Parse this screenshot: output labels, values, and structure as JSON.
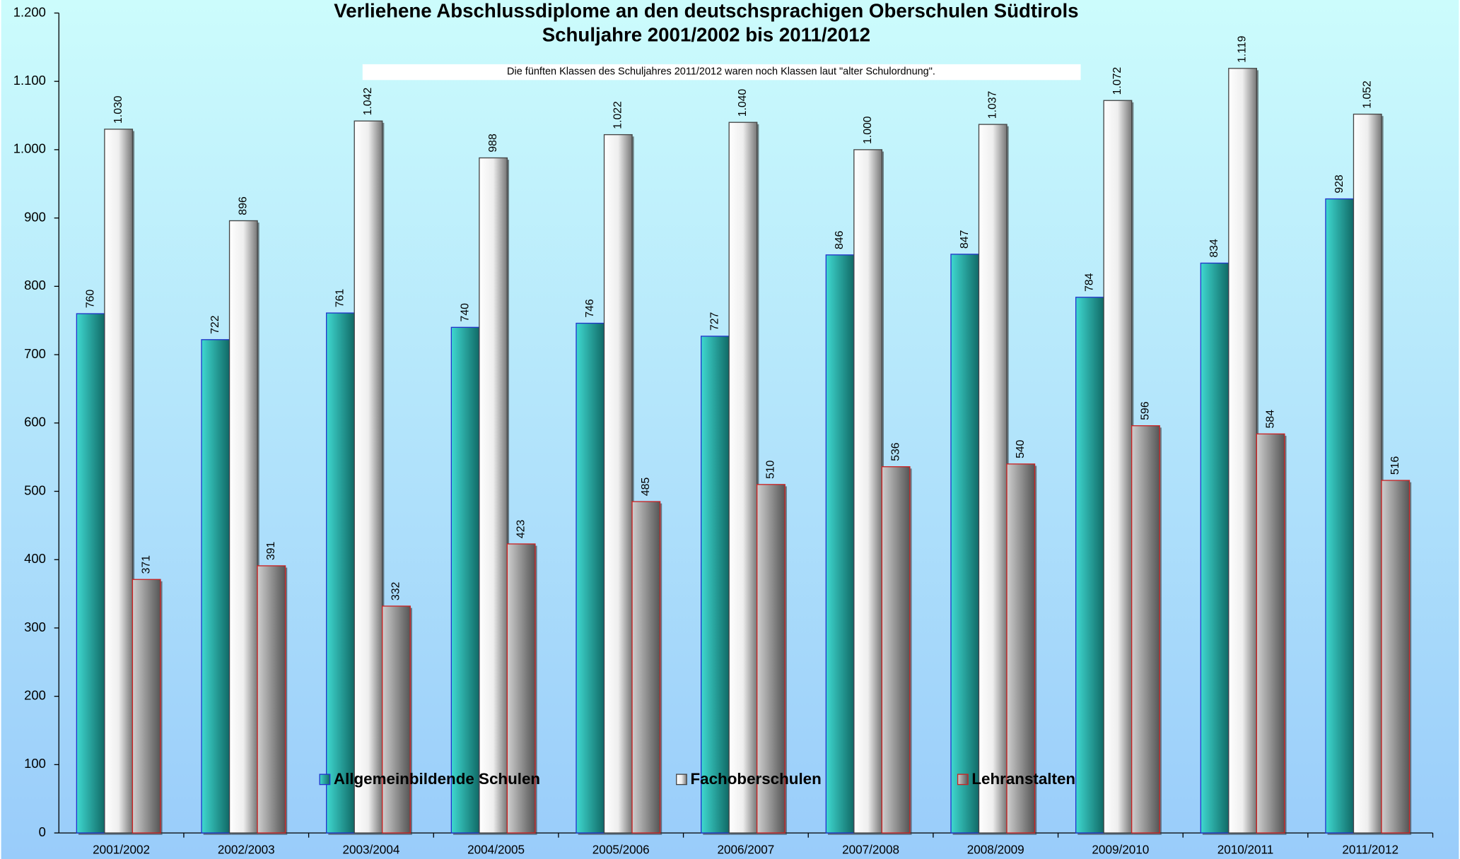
{
  "chart_data": {
    "type": "bar",
    "title": "Verliehene Abschlussdiplome an den deutschsprachigen Oberschulen Südtirols",
    "subtitle": "Schuljahre 2001/2002 bis 2011/2012",
    "annotation": "Die fünften Klassen des Schuljahres 2011/2012 waren noch Klassen laut \"alter Schulordnung\".",
    "categories": [
      "2001/2002",
      "2002/2003",
      "2003/2004",
      "2004/2005",
      "2005/2006",
      "2006/2007",
      "2007/2008",
      "2008/2009",
      "2009/2010",
      "2010/2011",
      "2011/2012"
    ],
    "series": [
      {
        "name": "Allgemeinbildende Schulen",
        "color": "#1fa7a0",
        "values": [
          760,
          722,
          761,
          740,
          746,
          727,
          846,
          847,
          784,
          834,
          928
        ]
      },
      {
        "name": "Fachoberschulen",
        "color": "#f2f2f2",
        "values": [
          1030,
          896,
          1042,
          988,
          1022,
          1040,
          1000,
          1037,
          1072,
          1119,
          1052
        ],
        "value_labels": [
          "1.030",
          "896",
          "1.042",
          "988",
          "1.022",
          "1.040",
          "1.000",
          "1.037",
          "1.072",
          "1.119",
          "1.052"
        ]
      },
      {
        "name": "Lehranstalten",
        "color": "#9a9a9a",
        "values": [
          371,
          391,
          332,
          423,
          485,
          510,
          536,
          540,
          596,
          584,
          516
        ]
      }
    ],
    "ylim": [
      0,
      1200
    ],
    "yticks": [
      0,
      100,
      200,
      300,
      400,
      500,
      600,
      700,
      800,
      900,
      {
        "value": 1000,
        "label": "1.000"
      },
      {
        "value": 1100,
        "label": "1.100"
      },
      {
        "value": 1200,
        "label": "1.200"
      }
    ],
    "grid": false,
    "legend": "bottom"
  }
}
